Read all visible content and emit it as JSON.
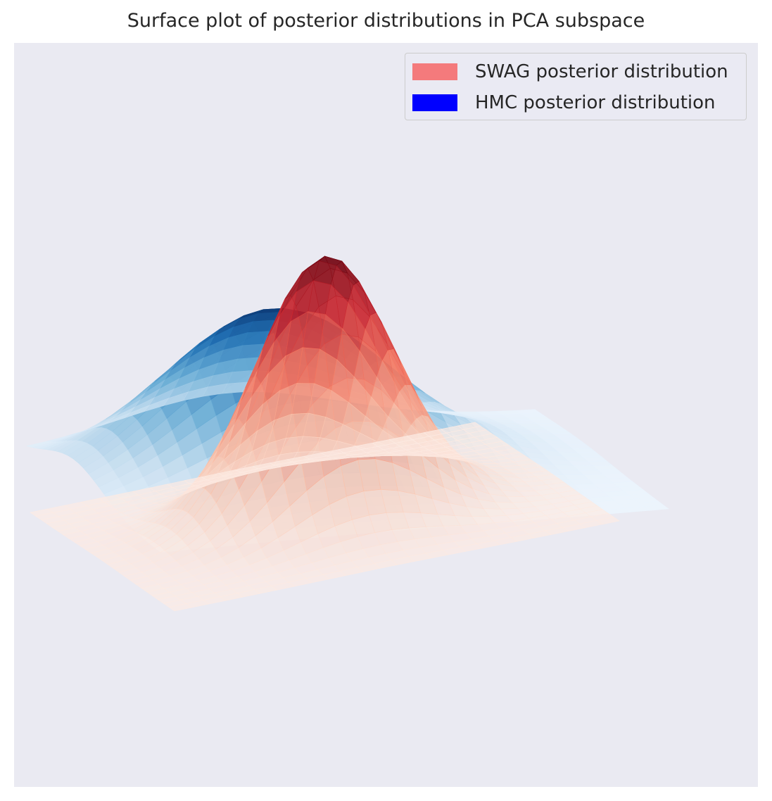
{
  "chart_data": {
    "type": "surface",
    "title": "Surface plot of posterior distributions in PCA subspace",
    "xlabel": "",
    "ylabel": "",
    "zlabel": "",
    "axes_visible": false,
    "grid": false,
    "legend_position": "top-right",
    "series": [
      {
        "name": "SWAG posterior distribution",
        "legend_color": "#f47a7c",
        "colormap": "Reds",
        "peak_density": 1.0,
        "peak_location": [
          0.0,
          0.0
        ],
        "spread": [
          0.9,
          0.9
        ]
      },
      {
        "name": "HMC posterior distribution",
        "legend_color": "#0000ff",
        "colormap": "Blues",
        "peak_density": 0.62,
        "peak_location": [
          -0.6,
          0.9
        ],
        "spread": [
          1.3,
          1.3
        ]
      }
    ]
  },
  "colors": {
    "plot_background": "#eaeaf2",
    "text": "#262626"
  }
}
